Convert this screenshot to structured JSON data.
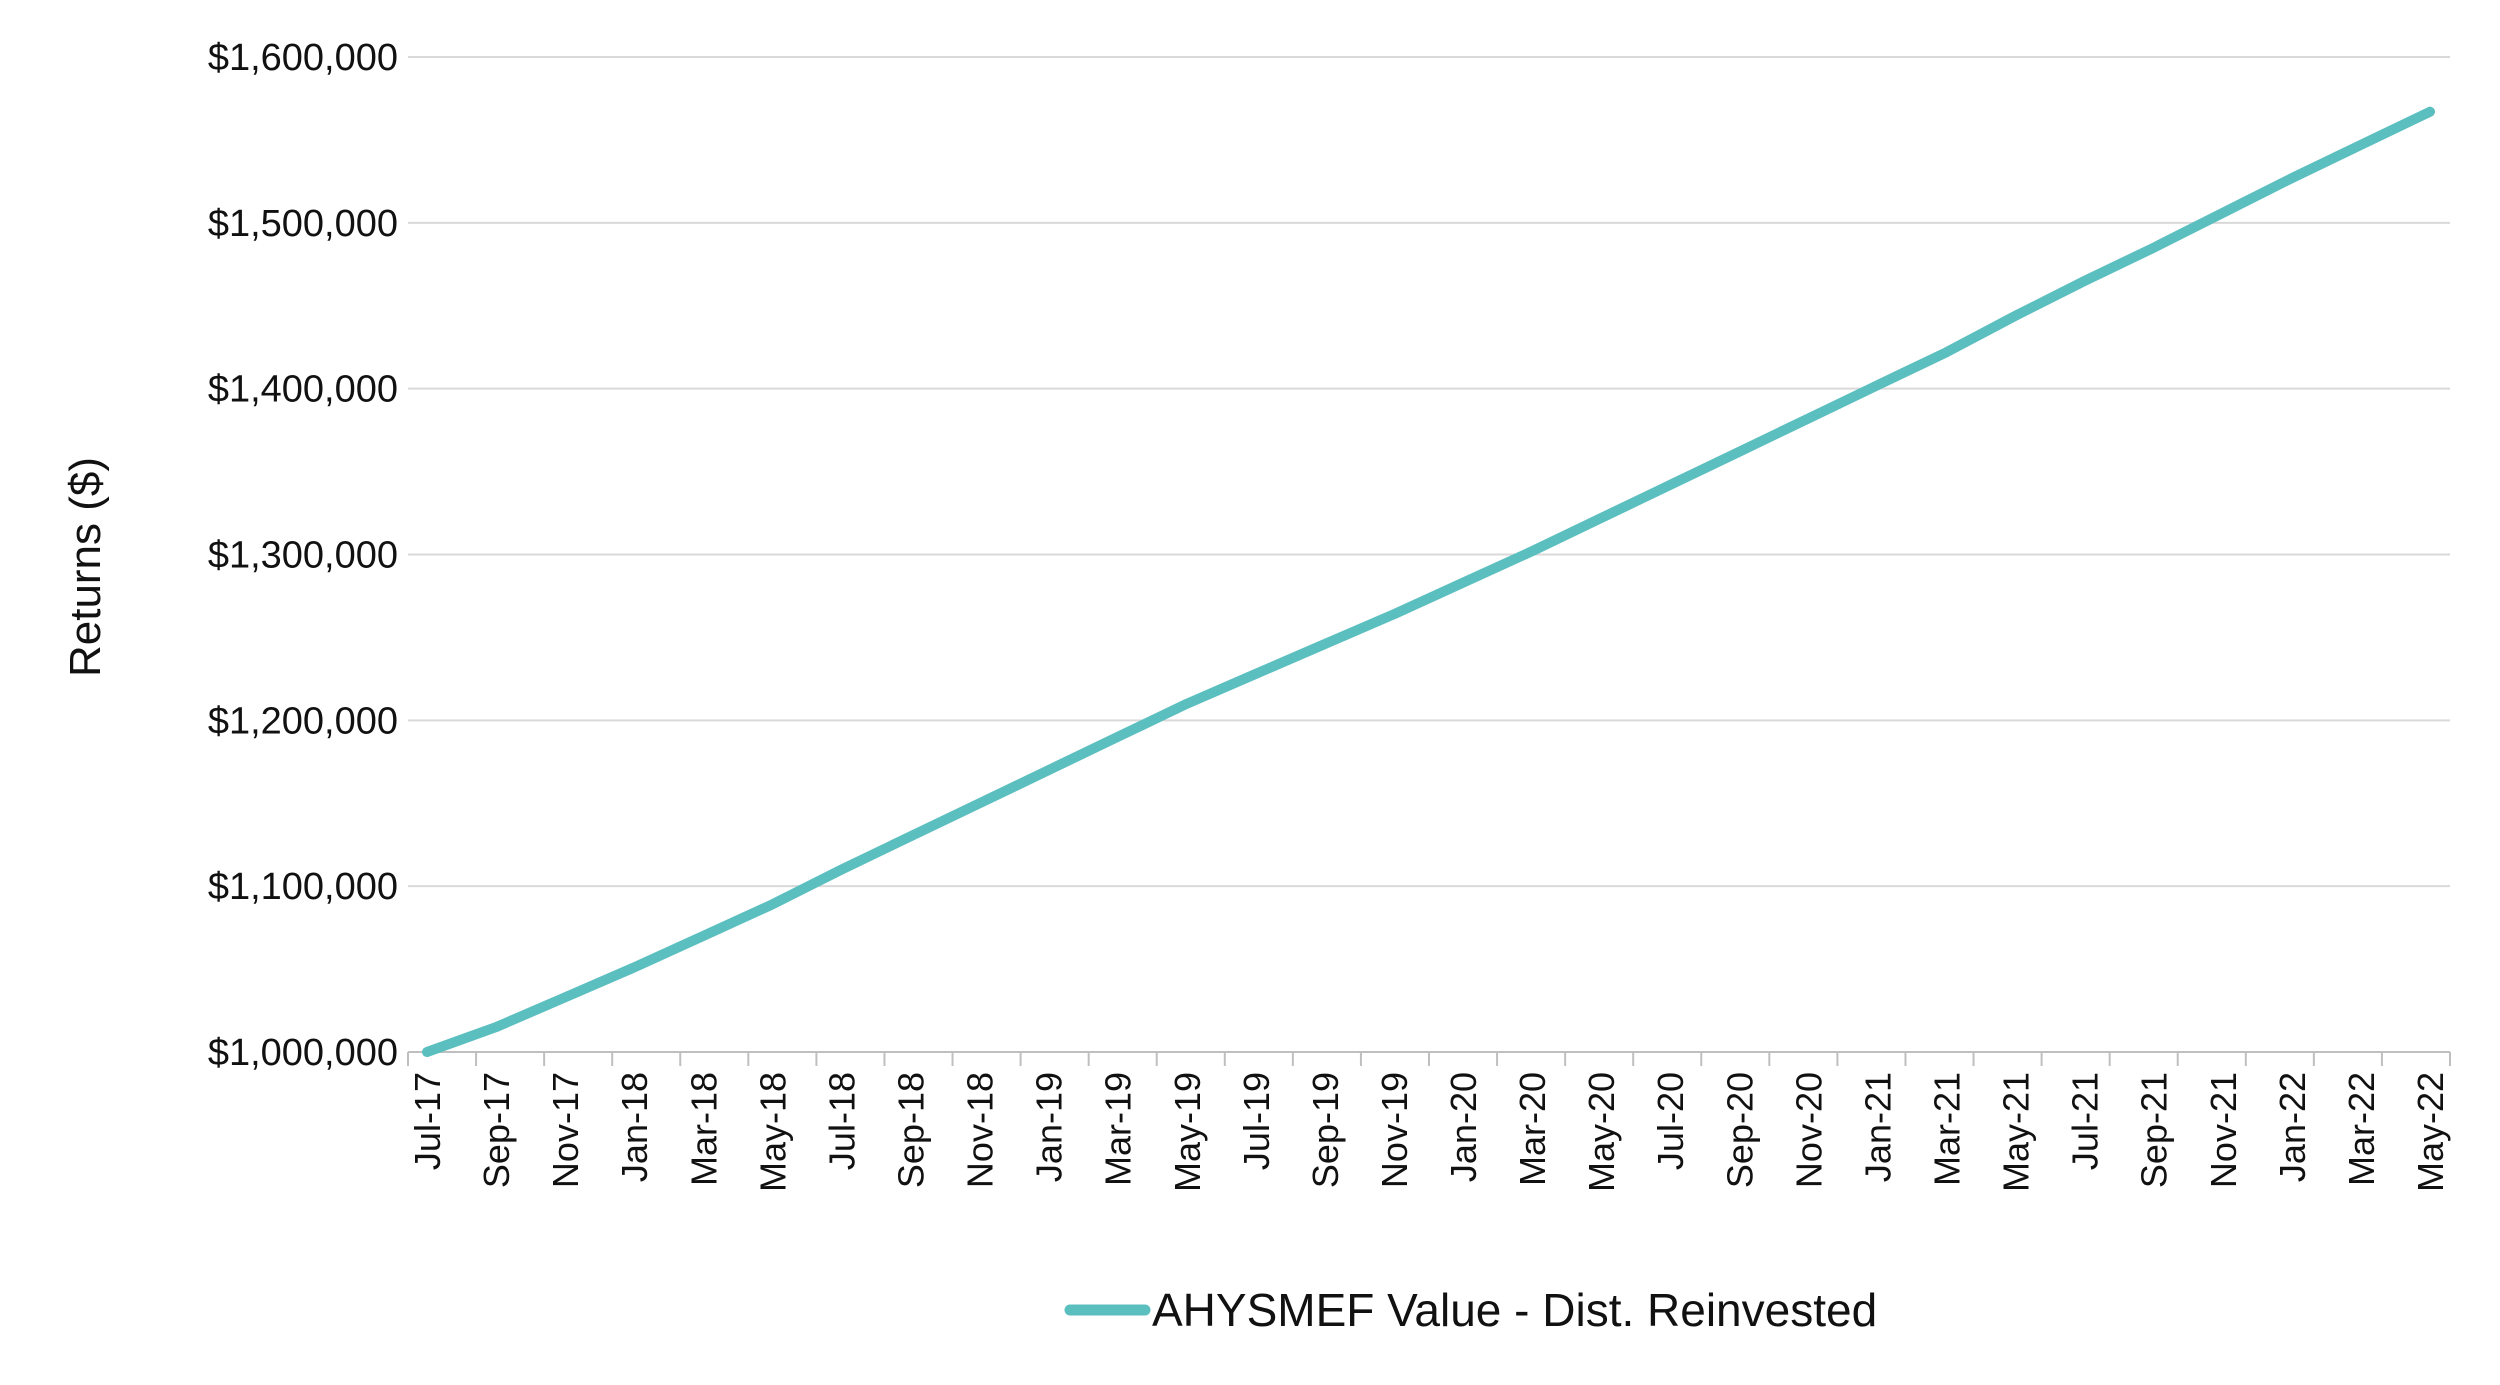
{
  "chart_data": {
    "type": "line",
    "title": "",
    "xlabel": "",
    "ylabel": "Returns ($)",
    "ylim": [
      1000000,
      1600000
    ],
    "yticks": [
      "$1,000,000",
      "$1,100,000",
      "$1,200,000",
      "$1,300,000",
      "$1,400,000",
      "$1,500,000",
      "$1,600,000"
    ],
    "ytick_values": [
      1000000,
      1100000,
      1200000,
      1300000,
      1400000,
      1500000,
      1600000
    ],
    "categories": [
      "Jul-17",
      "Sep-17",
      "Nov-17",
      "Jan-18",
      "Mar-18",
      "May-18",
      "Jul-18",
      "Sep-18",
      "Nov-18",
      "Jan-19",
      "Mar-19",
      "May-19",
      "Jul-19",
      "Sep-19",
      "Nov-19",
      "Jan-20",
      "Mar-20",
      "May-20",
      "Jul-20",
      "Sep-20",
      "Nov-20",
      "Jan-21",
      "Mar-21",
      "May-21",
      "Jul-21",
      "Sep-21",
      "Nov-21",
      "Jan-22",
      "Mar-22",
      "May-22"
    ],
    "grid": true,
    "legend_position": "bottom",
    "series": [
      {
        "name": "AHYSMEF Value - Dist. Reinvested",
        "color": "#5bbfbf",
        "values": [
          1000000,
          1015000,
          1033000,
          1051000,
          1070000,
          1089000,
          1110000,
          1130000,
          1150000,
          1170000,
          1190000,
          1210000,
          1228000,
          1246000,
          1264000,
          1283000,
          1302000,
          1322000,
          1342000,
          1362000,
          1382000,
          1402000,
          1422000,
          1444000,
          1465000,
          1485000,
          1506000,
          1527000,
          1547000,
          1567000
        ]
      }
    ]
  }
}
